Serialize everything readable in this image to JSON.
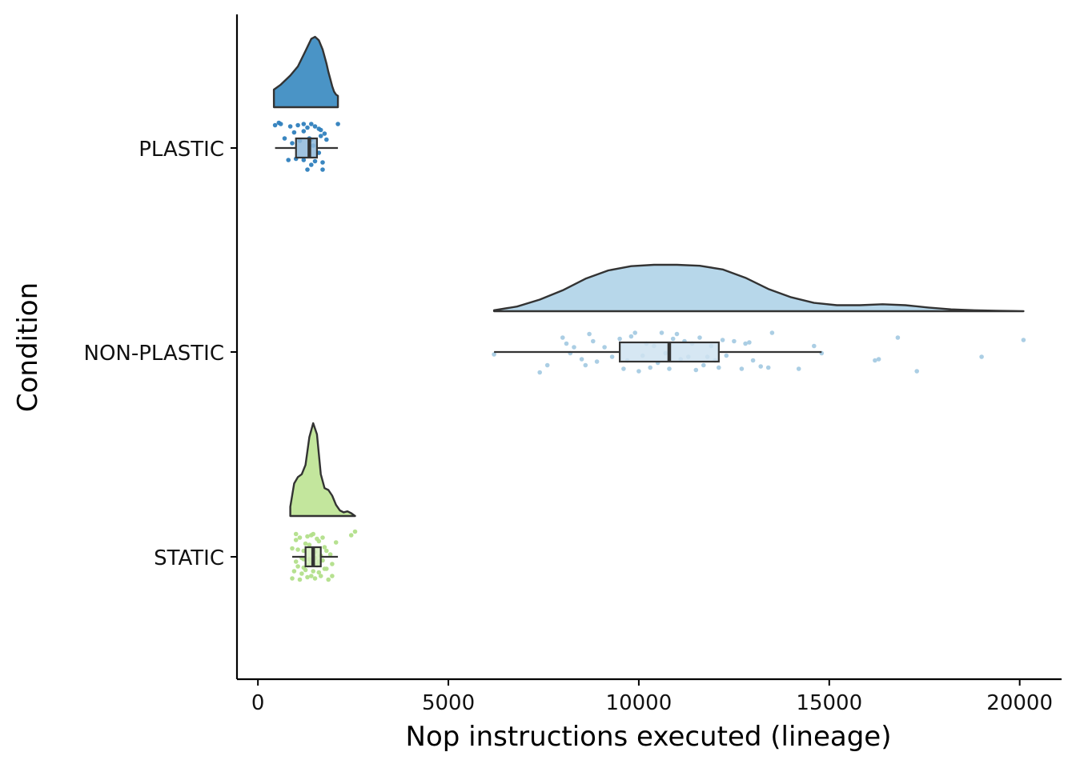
{
  "chart_data": {
    "type": "raincloud",
    "orientation": "horizontal",
    "xlabel": "Nop instructions executed (lineage)",
    "ylabel": "Condition",
    "xlim": [
      -550,
      21100
    ],
    "x_ticks": [
      0,
      5000,
      10000,
      15000,
      20000
    ],
    "x_tick_labels": [
      "0",
      "5000",
      "10000",
      "15000",
      "20000"
    ],
    "grid": false,
    "legend": "none",
    "categories": [
      "PLASTIC",
      "NON-PLASTIC",
      "STATIC"
    ],
    "series": [
      {
        "name": "PLASTIC",
        "color": "#4a94c6",
        "point_color": "#2f7fbd",
        "box_fill": "#8fb9da",
        "box": {
          "min": 450,
          "q1": 1000,
          "median": 1350,
          "q3": 1550,
          "max": 2100
        },
        "density": {
          "x": [
            420,
            600,
            850,
            1050,
            1250,
            1400,
            1500,
            1600,
            1700,
            1800,
            1850,
            1900,
            1950,
            2000,
            2050,
            2100
          ],
          "y": [
            0.25,
            0.32,
            0.45,
            0.58,
            0.8,
            0.97,
            1.0,
            0.95,
            0.82,
            0.62,
            0.5,
            0.4,
            0.3,
            0.22,
            0.18,
            0.16
          ]
        },
        "points": [
          [
            600,
            -1
          ],
          [
            850,
            -0.9
          ],
          [
            1050,
            -0.95
          ],
          [
            1200,
            -1
          ],
          [
            1300,
            -0.85
          ],
          [
            1400,
            -1
          ],
          [
            1500,
            -0.9
          ],
          [
            1600,
            -0.8
          ],
          [
            1650,
            -0.5
          ],
          [
            1350,
            -0.4
          ],
          [
            800,
            0.5
          ],
          [
            1000,
            0.45
          ],
          [
            1200,
            0.5
          ],
          [
            1500,
            0.55
          ],
          [
            1600,
            0.2
          ],
          [
            1400,
            -0.35
          ],
          [
            1100,
            -0.3
          ],
          [
            900,
            -0.2
          ],
          [
            1750,
            -0.6
          ],
          [
            700,
            -0.4
          ],
          [
            450,
            -0.95
          ],
          [
            550,
            -1.05
          ],
          [
            1300,
            0.9
          ],
          [
            1700,
            0.9
          ],
          [
            1400,
            0.7
          ],
          [
            950,
            -0.65
          ],
          [
            1200,
            -0.7
          ],
          [
            1800,
            -0.35
          ],
          [
            2100,
            -1
          ],
          [
            1650,
            -0.75
          ],
          [
            1450,
            -0.1
          ],
          [
            1700,
            0.6
          ]
        ]
      },
      {
        "name": "NON-PLASTIC",
        "color": "#b7d7ea",
        "point_color": "#a7cbe3",
        "box_fill": "#cfe3f1",
        "box": {
          "min": 6200,
          "q1": 9500,
          "median": 10800,
          "q3": 12100,
          "max": 14800
        },
        "density": {
          "x": [
            6200,
            6800,
            7400,
            8000,
            8600,
            9200,
            9800,
            10400,
            11000,
            11600,
            12200,
            12800,
            13400,
            14000,
            14600,
            15200,
            15800,
            16400,
            17000,
            17600,
            18200,
            18800,
            19400,
            20100
          ],
          "y": [
            0.02,
            0.1,
            0.25,
            0.45,
            0.7,
            0.88,
            0.97,
            1.0,
            1.0,
            0.98,
            0.9,
            0.72,
            0.48,
            0.3,
            0.18,
            0.13,
            0.13,
            0.15,
            0.13,
            0.08,
            0.04,
            0.02,
            0.01,
            0.0
          ]
        },
        "points": [
          [
            6200,
            0.1
          ],
          [
            7400,
            0.85
          ],
          [
            7600,
            0.55
          ],
          [
            8000,
            -0.6
          ],
          [
            8100,
            -0.35
          ],
          [
            8200,
            0.05
          ],
          [
            8300,
            -0.2
          ],
          [
            8500,
            0.3
          ],
          [
            8600,
            0.55
          ],
          [
            8700,
            -0.75
          ],
          [
            8800,
            -0.45
          ],
          [
            8900,
            0.4
          ],
          [
            9100,
            -0.2
          ],
          [
            9300,
            0.2
          ],
          [
            9500,
            -0.55
          ],
          [
            9600,
            0.7
          ],
          [
            9700,
            0.35
          ],
          [
            9800,
            -0.65
          ],
          [
            9900,
            -0.8
          ],
          [
            10000,
            0.8
          ],
          [
            10100,
            0.15
          ],
          [
            10200,
            -0.35
          ],
          [
            10300,
            0.65
          ],
          [
            10400,
            -0.25
          ],
          [
            10500,
            0.45
          ],
          [
            10600,
            -0.8
          ],
          [
            10700,
            0.05
          ],
          [
            10800,
            0.7
          ],
          [
            10900,
            -0.55
          ],
          [
            11000,
            -0.75
          ],
          [
            11100,
            0.3
          ],
          [
            11200,
            -0.45
          ],
          [
            11300,
            0.2
          ],
          [
            11400,
            -0.35
          ],
          [
            11500,
            0.75
          ],
          [
            11600,
            -0.6
          ],
          [
            11700,
            0.55
          ],
          [
            11800,
            0.2
          ],
          [
            11900,
            -0.25
          ],
          [
            12000,
            0.35
          ],
          [
            12100,
            0.65
          ],
          [
            12200,
            -0.5
          ],
          [
            12300,
            0.15
          ],
          [
            12500,
            -0.45
          ],
          [
            12700,
            0.7
          ],
          [
            12800,
            -0.35
          ],
          [
            12900,
            -0.4
          ],
          [
            13000,
            0.35
          ],
          [
            13200,
            0.6
          ],
          [
            13400,
            0.65
          ],
          [
            13500,
            -0.8
          ],
          [
            14200,
            0.7
          ],
          [
            14600,
            -0.25
          ],
          [
            14800,
            0.05
          ],
          [
            16200,
            0.35
          ],
          [
            16300,
            0.3
          ],
          [
            16800,
            -0.6
          ],
          [
            17300,
            0.8
          ],
          [
            19000,
            0.2
          ],
          [
            20100,
            -0.5
          ]
        ]
      },
      {
        "name": "STATIC",
        "color": "#c3e69d",
        "point_color": "#b2df8a",
        "box_fill": "#d6efbd",
        "box": {
          "min": 900,
          "q1": 1250,
          "median": 1450,
          "q3": 1650,
          "max": 2100
        },
        "density": {
          "x": [
            850,
            950,
            1050,
            1150,
            1250,
            1350,
            1450,
            1550,
            1650,
            1750,
            1850,
            1950,
            2050,
            2150,
            2250,
            2350,
            2450,
            2550
          ],
          "y": [
            0.1,
            0.35,
            0.42,
            0.45,
            0.55,
            0.85,
            1.0,
            0.88,
            0.45,
            0.3,
            0.28,
            0.22,
            0.12,
            0.06,
            0.04,
            0.05,
            0.03,
            0.0
          ]
        },
        "points": [
          [
            900,
            0.9
          ],
          [
            950,
            0.6
          ],
          [
            1000,
            0.2
          ],
          [
            1050,
            -0.3
          ],
          [
            1100,
            -0.8
          ],
          [
            1150,
            0.7
          ],
          [
            1200,
            0.45
          ],
          [
            1250,
            -0.55
          ],
          [
            1300,
            0.85
          ],
          [
            1350,
            0.1
          ],
          [
            1400,
            -0.9
          ],
          [
            1450,
            0.6
          ],
          [
            1500,
            -0.2
          ],
          [
            1550,
            0.35
          ],
          [
            1600,
            -0.65
          ],
          [
            1650,
            0.8
          ],
          [
            1700,
            0.15
          ],
          [
            1750,
            -0.4
          ],
          [
            1800,
            0.5
          ],
          [
            1850,
            0.95
          ],
          [
            1900,
            -0.1
          ],
          [
            1950,
            0.3
          ],
          [
            2050,
            -0.6
          ],
          [
            2550,
            -1.05
          ],
          [
            2450,
            -0.9
          ],
          [
            1000,
            -0.7
          ],
          [
            1100,
            0.95
          ],
          [
            1300,
            -0.85
          ],
          [
            1500,
            0.9
          ],
          [
            1700,
            -0.8
          ],
          [
            1200,
            0.1
          ],
          [
            1400,
            0.25
          ],
          [
            1600,
            0.65
          ],
          [
            900,
            -0.35
          ],
          [
            1800,
            -0.25
          ],
          [
            1350,
            -0.5
          ],
          [
            1150,
            0.05
          ],
          [
            1550,
            -0.75
          ],
          [
            1250,
            0.55
          ],
          [
            1950,
            0.8
          ],
          [
            1050,
            0.4
          ],
          [
            1650,
            -0.05
          ],
          [
            1450,
            -0.95
          ],
          [
            1750,
            0.5
          ],
          [
            1500,
            0.05
          ],
          [
            1300,
            0.35
          ],
          [
            1000,
            -0.95
          ],
          [
            1400,
            0.8
          ],
          [
            1200,
            -0.25
          ],
          [
            1600,
            0.2
          ]
        ]
      }
    ]
  }
}
